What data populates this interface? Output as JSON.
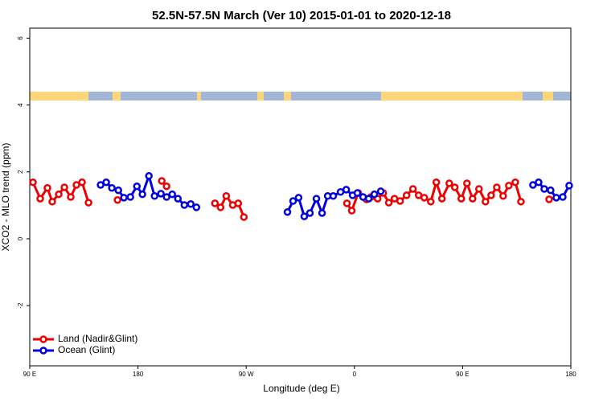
{
  "chart_data": {
    "type": "line",
    "title": "52.5N-57.5N March (Ver 10)   2015-01-01 to 2020-12-18",
    "x_label": "Longitude (deg E)",
    "y_label": "XCO2 - MLO trend (ppm)",
    "xlim": [
      90,
      540
    ],
    "xticks": [
      {
        "value": 90,
        "label": "90 E"
      },
      180,
      {
        "value": 270,
        "label": "90 W"
      },
      {
        "value": 360,
        "label": "0"
      },
      {
        "value": 450,
        "label": "90 E"
      },
      {
        "value": 540,
        "label": "180"
      }
    ],
    "ylim": [
      -3.8,
      6.3
    ],
    "yticks": [
      -2,
      0,
      2,
      4,
      6
    ],
    "legend": "bottom-left",
    "series": [
      {
        "name": "Land (Nadir&Glint)",
        "color": "#ee0000",
        "x": [
          92.7,
          98.7,
          104.7,
          108.7,
          114.1,
          118.8,
          124.1,
          128.8,
          133.5,
          138.9,
          null,
          163.0,
          null,
          199.8,
          203.8,
          null,
          244.0,
          248.7,
          253.4,
          258.8,
          263.4,
          268.1,
          null,
          353.8,
          357.8,
          363.2,
          369.9,
          373.9,
          379.3,
          384.0,
          388.6,
          393.3,
          398.0,
          403.4,
          408.7,
          413.4,
          418.1,
          423.5,
          428.1,
          432.8,
          438.9,
          443.5,
          448.9,
          453.6,
          458.3,
          463.6,
          469.0,
          473.7,
          478.4,
          483.7,
          488.4,
          493.8,
          498.5,
          null,
          521.9
        ],
        "values": [
          1.69,
          1.2,
          1.52,
          1.11,
          1.33,
          1.54,
          1.25,
          1.61,
          1.69,
          1.08,
          null,
          1.16,
          null,
          1.73,
          1.57,
          null,
          1.06,
          0.94,
          1.28,
          1.01,
          1.06,
          0.65,
          null,
          1.06,
          0.84,
          1.37,
          1.18,
          1.25,
          1.2,
          1.37,
          1.08,
          1.2,
          1.13,
          1.3,
          1.49,
          1.3,
          1.23,
          1.11,
          1.69,
          1.2,
          1.66,
          1.54,
          1.2,
          1.66,
          1.2,
          1.49,
          1.11,
          1.3,
          1.54,
          1.28,
          1.59,
          1.69,
          1.11,
          null,
          1.18
        ]
      },
      {
        "name": "Ocean (Glint)",
        "color": "#0000dd",
        "x": [
          148.9,
          153.6,
          158.3,
          163.7,
          168.3,
          173.7,
          179.1,
          183.7,
          189.1,
          193.8,
          199.1,
          203.8,
          208.5,
          213.2,
          218.6,
          223.9,
          228.6,
          null,
          304.3,
          309.0,
          313.6,
          318.3,
          323.0,
          328.4,
          333.1,
          337.8,
          342.4,
          348.5,
          353.2,
          358.5,
          362.5,
          367.2,
          371.9,
          376.6,
          381.9,
          null,
          508.5,
          513.2,
          517.9,
          523.2,
          527.9,
          533.3,
          538.6
        ],
        "values": [
          1.61,
          1.69,
          1.52,
          1.45,
          1.23,
          1.25,
          1.57,
          1.33,
          1.88,
          1.28,
          1.35,
          1.25,
          1.33,
          1.2,
          1.01,
          1.04,
          0.94,
          null,
          0.8,
          1.13,
          1.23,
          0.67,
          0.77,
          1.2,
          0.77,
          1.28,
          1.28,
          1.4,
          1.47,
          1.3,
          1.37,
          1.25,
          1.2,
          1.33,
          1.42,
          null,
          1.61,
          1.69,
          1.49,
          1.45,
          1.23,
          1.25,
          1.59
        ]
      }
    ]
  }
}
